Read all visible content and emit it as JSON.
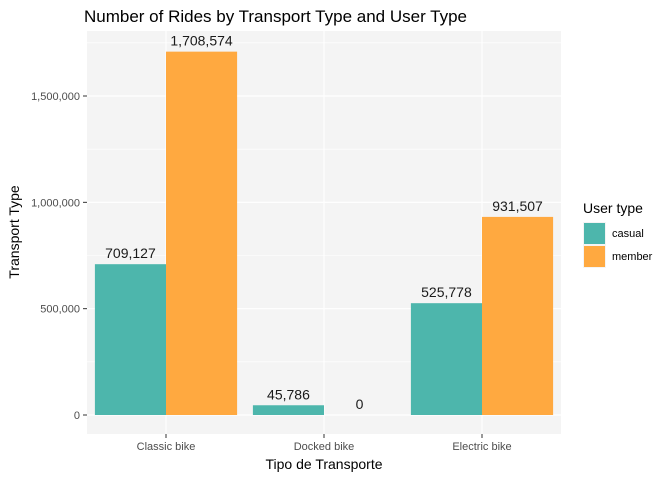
{
  "chart_data": {
    "type": "bar",
    "title": "Number of Rides by Transport Type and User Type",
    "xlabel": "Tipo de Transporte",
    "ylabel": "Transport Type",
    "categories": [
      "Classic bike",
      "Docked bike",
      "Electric bike"
    ],
    "series": [
      {
        "name": "casual",
        "color": "#4DB6AC",
        "values": [
          709127,
          45786,
          525778
        ],
        "labels": [
          "709,127",
          "45,786",
          "525,778"
        ]
      },
      {
        "name": "member",
        "color": "#FFA940",
        "values": [
          1708574,
          0,
          931507
        ],
        "labels": [
          "1,708,574",
          "0",
          "931,507"
        ]
      }
    ],
    "ylim": [
      0,
      1800000
    ],
    "yticks": [
      0,
      500000,
      1000000,
      1500000
    ],
    "ytick_labels": [
      "0",
      "500,000",
      "1,000,000",
      "1,500,000"
    ],
    "grid": true,
    "panel_background": "#F4F4F4",
    "legend": {
      "title": "User type",
      "placement": "right"
    }
  }
}
